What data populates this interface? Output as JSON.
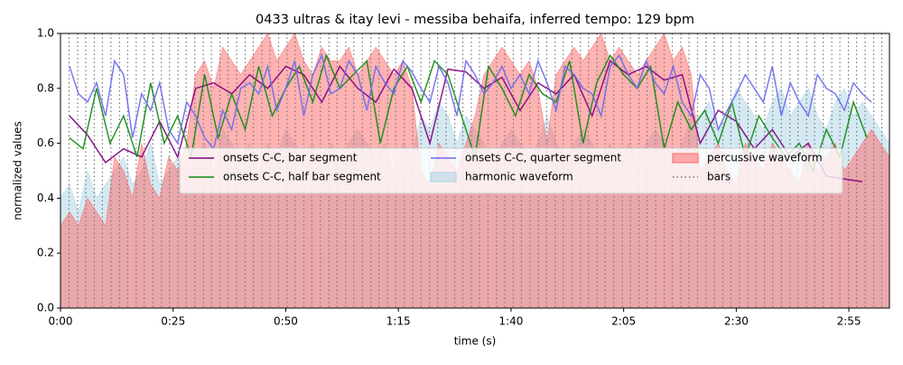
{
  "chart_data": {
    "type": "line",
    "title": "0433 ultras & itay levi - messiba behaifa, inferred tempo: 129 bpm",
    "xlabel": "time (s)",
    "ylabel": "normalized values",
    "xlim": [
      0,
      184
    ],
    "ylim": [
      0,
      1
    ],
    "xticks": [
      {
        "value": 0,
        "label": "0:00"
      },
      {
        "value": 25,
        "label": "0:25"
      },
      {
        "value": 50,
        "label": "0:50"
      },
      {
        "value": 75,
        "label": "1:15"
      },
      {
        "value": 100,
        "label": "1:40"
      },
      {
        "value": 125,
        "label": "2:05"
      },
      {
        "value": 150,
        "label": "2:30"
      },
      {
        "value": 175,
        "label": "2:55"
      }
    ],
    "yticks": [
      {
        "value": 0,
        "label": "0.0"
      },
      0.2,
      0.4,
      0.6,
      0.8,
      {
        "value": 1,
        "label": "1.0"
      }
    ],
    "legend": "center",
    "legend_ncol": 3,
    "series": [
      {
        "name": "onsets C-C, bar segment",
        "kind": "line",
        "color": "#800080",
        "x": [
          2,
          6,
          10,
          14,
          18,
          22,
          26,
          30,
          34,
          38,
          42,
          46,
          50,
          54,
          58,
          62,
          66,
          70,
          74,
          78,
          82,
          86,
          90,
          94,
          98,
          102,
          106,
          110,
          114,
          118,
          122,
          126,
          130,
          134,
          138,
          142,
          146,
          150,
          154,
          158,
          162,
          166,
          170,
          174,
          178
        ],
        "values": [
          0.7,
          0.63,
          0.53,
          0.58,
          0.55,
          0.68,
          0.55,
          0.8,
          0.82,
          0.78,
          0.85,
          0.8,
          0.88,
          0.85,
          0.75,
          0.88,
          0.8,
          0.75,
          0.87,
          0.8,
          0.6,
          0.87,
          0.86,
          0.8,
          0.84,
          0.72,
          0.82,
          0.78,
          0.85,
          0.7,
          0.9,
          0.85,
          0.88,
          0.83,
          0.85,
          0.6,
          0.72,
          0.68,
          0.58,
          0.65,
          0.55,
          0.6,
          0.48,
          0.47,
          0.46
        ]
      },
      {
        "name": "onsets C-C, half bar segment",
        "kind": "line",
        "color": "#118811",
        "x": [
          2,
          5,
          8,
          11,
          14,
          17,
          20,
          23,
          26,
          29,
          32,
          35,
          38,
          41,
          44,
          47,
          50,
          53,
          56,
          59,
          62,
          65,
          68,
          71,
          74,
          77,
          80,
          83,
          86,
          89,
          92,
          95,
          98,
          101,
          104,
          107,
          110,
          113,
          116,
          119,
          122,
          125,
          128,
          131,
          134,
          137,
          140,
          143,
          146,
          149,
          152,
          155,
          158,
          161,
          164,
          167,
          170,
          173,
          176,
          179
        ],
        "values": [
          0.62,
          0.58,
          0.8,
          0.6,
          0.7,
          0.55,
          0.82,
          0.6,
          0.7,
          0.55,
          0.85,
          0.62,
          0.78,
          0.65,
          0.88,
          0.7,
          0.8,
          0.88,
          0.75,
          0.92,
          0.8,
          0.85,
          0.9,
          0.6,
          0.8,
          0.88,
          0.75,
          0.9,
          0.85,
          0.7,
          0.55,
          0.88,
          0.8,
          0.7,
          0.85,
          0.78,
          0.75,
          0.9,
          0.6,
          0.82,
          0.92,
          0.85,
          0.8,
          0.88,
          0.58,
          0.75,
          0.65,
          0.72,
          0.6,
          0.75,
          0.55,
          0.7,
          0.62,
          0.55,
          0.6,
          0.5,
          0.65,
          0.55,
          0.75,
          0.62
        ]
      },
      {
        "name": "onsets C-C, quarter segment",
        "kind": "line",
        "color": "#6a6af0",
        "x": [
          2,
          4,
          6,
          8,
          10,
          12,
          14,
          16,
          18,
          20,
          22,
          24,
          26,
          28,
          30,
          32,
          34,
          36,
          38,
          40,
          42,
          44,
          46,
          48,
          50,
          52,
          54,
          56,
          58,
          60,
          62,
          64,
          66,
          68,
          70,
          72,
          74,
          76,
          78,
          80,
          82,
          84,
          86,
          88,
          90,
          92,
          94,
          96,
          98,
          100,
          102,
          104,
          106,
          108,
          110,
          112,
          114,
          116,
          118,
          120,
          122,
          124,
          126,
          128,
          130,
          132,
          134,
          136,
          138,
          140,
          142,
          144,
          146,
          148,
          150,
          152,
          154,
          156,
          158,
          160,
          162,
          164,
          166,
          168,
          170,
          172,
          174,
          176,
          178,
          180
        ],
        "values": [
          0.88,
          0.78,
          0.75,
          0.82,
          0.7,
          0.9,
          0.85,
          0.62,
          0.78,
          0.72,
          0.82,
          0.65,
          0.6,
          0.75,
          0.7,
          0.62,
          0.58,
          0.72,
          0.65,
          0.8,
          0.82,
          0.78,
          0.88,
          0.72,
          0.8,
          0.9,
          0.7,
          0.85,
          0.92,
          0.78,
          0.8,
          0.9,
          0.85,
          0.72,
          0.88,
          0.82,
          0.78,
          0.9,
          0.86,
          0.8,
          0.75,
          0.88,
          0.82,
          0.7,
          0.9,
          0.85,
          0.78,
          0.82,
          0.88,
          0.8,
          0.85,
          0.78,
          0.9,
          0.82,
          0.72,
          0.88,
          0.85,
          0.8,
          0.78,
          0.7,
          0.88,
          0.92,
          0.85,
          0.8,
          0.9,
          0.82,
          0.78,
          0.88,
          0.75,
          0.7,
          0.85,
          0.8,
          0.65,
          0.72,
          0.78,
          0.85,
          0.8,
          0.75,
          0.88,
          0.7,
          0.82,
          0.75,
          0.7,
          0.85,
          0.8,
          0.78,
          0.72,
          0.82,
          0.78,
          0.75
        ]
      },
      {
        "name": "harmonic waveform",
        "kind": "area",
        "color": "#a9d3e6",
        "x": [
          0,
          2,
          4,
          6,
          8,
          10,
          12,
          14,
          16,
          18,
          20,
          22,
          24,
          26,
          28,
          30,
          32,
          34,
          36,
          38,
          40,
          42,
          44,
          46,
          48,
          50,
          52,
          54,
          56,
          58,
          60,
          62,
          64,
          66,
          68,
          70,
          72,
          74,
          76,
          78,
          80,
          82,
          84,
          86,
          88,
          90,
          92,
          94,
          96,
          98,
          100,
          102,
          104,
          106,
          108,
          110,
          112,
          114,
          116,
          118,
          120,
          122,
          124,
          126,
          128,
          130,
          132,
          134,
          136,
          138,
          140,
          142,
          144,
          146,
          148,
          150,
          152,
          154,
          156,
          158,
          160,
          162,
          164,
          166,
          168,
          170,
          172,
          174,
          176,
          178,
          180,
          182,
          184
        ],
        "values": [
          0.4,
          0.45,
          0.35,
          0.5,
          0.4,
          0.45,
          0.5,
          0.55,
          0.45,
          0.5,
          0.6,
          0.45,
          0.5,
          0.55,
          0.5,
          0.55,
          0.6,
          0.5,
          0.65,
          0.6,
          0.55,
          0.6,
          0.5,
          0.6,
          0.55,
          0.65,
          0.6,
          0.55,
          0.6,
          0.5,
          0.6,
          0.55,
          0.6,
          0.65,
          0.6,
          0.55,
          0.6,
          0.5,
          0.6,
          0.55,
          0.7,
          0.65,
          0.75,
          0.7,
          0.6,
          0.7,
          0.65,
          0.6,
          0.55,
          0.6,
          0.65,
          0.6,
          0.55,
          0.6,
          0.7,
          0.6,
          0.55,
          0.6,
          0.65,
          0.6,
          0.55,
          0.6,
          0.5,
          0.6,
          0.55,
          0.6,
          0.65,
          0.6,
          0.55,
          0.6,
          0.7,
          0.7,
          0.75,
          0.65,
          0.7,
          0.8,
          0.75,
          0.7,
          0.65,
          0.75,
          0.8,
          0.7,
          0.75,
          0.8,
          0.7,
          0.65,
          0.75,
          0.8,
          0.7,
          0.75,
          0.7,
          0.65,
          0.6
        ]
      },
      {
        "name": "percussive waveform",
        "kind": "area",
        "color": "#ff6666",
        "x": [
          0,
          2,
          4,
          6,
          8,
          10,
          12,
          14,
          16,
          18,
          20,
          22,
          24,
          26,
          28,
          30,
          32,
          34,
          36,
          38,
          40,
          42,
          44,
          46,
          48,
          50,
          52,
          54,
          56,
          58,
          60,
          62,
          64,
          66,
          68,
          70,
          72,
          74,
          76,
          78,
          80,
          82,
          84,
          86,
          88,
          90,
          92,
          94,
          96,
          98,
          100,
          102,
          104,
          106,
          108,
          110,
          112,
          114,
          116,
          118,
          120,
          122,
          124,
          126,
          128,
          130,
          132,
          134,
          136,
          138,
          140,
          142,
          144,
          146,
          148,
          150,
          152,
          154,
          156,
          158,
          160,
          162,
          164,
          166,
          168,
          170,
          172,
          174,
          176,
          178,
          180,
          182,
          184
        ],
        "values": [
          0.3,
          0.35,
          0.3,
          0.4,
          0.35,
          0.3,
          0.55,
          0.5,
          0.4,
          0.6,
          0.45,
          0.4,
          0.55,
          0.5,
          0.6,
          0.85,
          0.9,
          0.8,
          0.95,
          0.9,
          0.85,
          0.9,
          0.95,
          1.0,
          0.9,
          0.95,
          1.0,
          0.9,
          0.85,
          0.95,
          0.9,
          0.9,
          0.95,
          0.85,
          0.9,
          0.95,
          0.9,
          0.85,
          0.9,
          0.8,
          0.5,
          0.45,
          0.6,
          0.55,
          0.5,
          0.6,
          0.7,
          0.85,
          0.9,
          0.95,
          0.9,
          0.85,
          0.9,
          0.8,
          0.6,
          0.85,
          0.9,
          0.95,
          0.9,
          0.95,
          1.0,
          0.9,
          0.95,
          0.9,
          0.85,
          0.9,
          0.95,
          1.0,
          0.9,
          0.95,
          0.85,
          0.5,
          0.55,
          0.6,
          0.5,
          0.45,
          0.6,
          0.55,
          0.5,
          0.6,
          0.55,
          0.5,
          0.45,
          0.6,
          0.5,
          0.55,
          0.6,
          0.5,
          0.55,
          0.6,
          0.65,
          0.6,
          0.55
        ]
      },
      {
        "name": "bars",
        "kind": "vlines",
        "color": "#777777",
        "x": [
          1.9,
          3.8,
          5.6,
          7.5,
          9.3,
          11.2,
          13.1,
          14.9,
          16.8,
          18.6,
          20.5,
          22.4,
          24.2,
          26.1,
          27.9,
          29.8,
          31.7,
          33.5,
          35.4,
          37.2,
          39.1,
          41.0,
          42.8,
          44.7,
          46.5,
          48.4,
          50.3,
          52.1,
          54.0,
          55.8,
          57.7,
          59.6,
          61.4,
          63.3,
          65.1,
          67.0,
          68.9,
          70.7,
          72.6,
          74.4,
          76.3,
          78.2,
          80.0,
          81.9,
          83.7,
          85.6,
          87.5,
          89.3,
          91.2,
          93.0,
          94.9,
          96.8,
          98.6,
          100.5,
          102.3,
          104.2,
          106.1,
          107.9,
          109.8,
          111.6,
          113.5,
          115.4,
          117.2,
          119.1,
          120.9,
          122.8,
          124.7,
          126.5,
          128.4,
          130.2,
          132.1,
          134.0,
          135.8,
          137.7,
          139.5,
          141.4,
          143.3,
          145.1,
          147.0,
          148.8,
          150.7,
          152.6,
          154.4,
          156.3,
          158.1,
          160.0,
          161.9,
          163.7,
          165.6,
          167.4,
          169.3,
          171.2,
          173.0,
          174.9,
          176.7,
          178.6,
          180.5,
          182.3
        ]
      }
    ]
  }
}
